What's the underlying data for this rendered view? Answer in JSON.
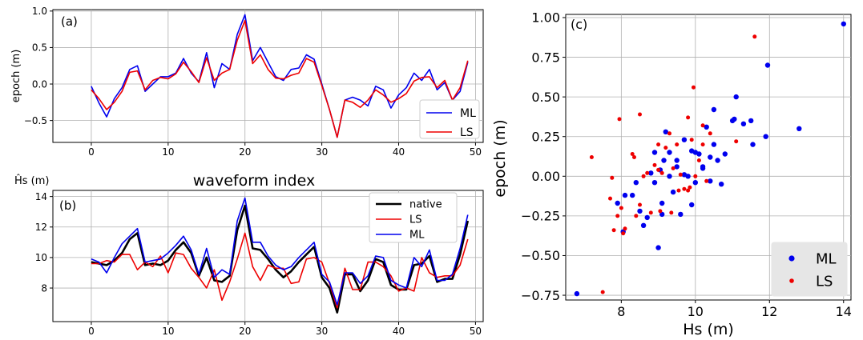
{
  "chart_data": [
    {
      "type": "line",
      "panel_label": "(a)",
      "xlabel": "waveform index",
      "ylabel": "epoch (m)",
      "xlim": [
        -5,
        51
      ],
      "ylim": [
        -0.8,
        1.02
      ],
      "xticks": [
        0,
        10,
        20,
        30,
        40,
        50
      ],
      "yticks": [
        -0.5,
        0.0,
        0.5,
        1.0
      ],
      "ytick_labels": [
        "−0.5",
        "0.0",
        "0.5",
        "1.0"
      ],
      "grid": true,
      "legend": "lower-right",
      "x": [
        0,
        1,
        2,
        3,
        4,
        5,
        6,
        7,
        8,
        9,
        10,
        11,
        12,
        13,
        14,
        15,
        16,
        17,
        18,
        19,
        20,
        21,
        22,
        23,
        24,
        25,
        26,
        27,
        28,
        29,
        30,
        31,
        32,
        33,
        34,
        35,
        36,
        37,
        38,
        39,
        40,
        41,
        42,
        43,
        44,
        45,
        46,
        47,
        48,
        49
      ],
      "series": [
        {
          "name": "ML",
          "color": "#0000ee",
          "values": [
            -0.03,
            -0.26,
            -0.45,
            -0.2,
            -0.05,
            0.2,
            0.25,
            -0.1,
            0.0,
            0.1,
            0.1,
            0.15,
            0.35,
            0.15,
            0.03,
            0.43,
            -0.05,
            0.28,
            0.2,
            0.68,
            0.95,
            0.32,
            0.5,
            0.3,
            0.1,
            0.05,
            0.2,
            0.22,
            0.4,
            0.34,
            0.0,
            -0.35,
            -0.73,
            -0.22,
            -0.18,
            -0.22,
            -0.3,
            -0.03,
            -0.08,
            -0.33,
            -0.15,
            -0.05,
            0.15,
            0.05,
            0.2,
            -0.08,
            0.02,
            -0.22,
            -0.1,
            0.3
          ]
        },
        {
          "name": "LS",
          "color": "#ee0000",
          "values": [
            -0.08,
            -0.2,
            -0.35,
            -0.25,
            -0.1,
            0.16,
            0.18,
            -0.08,
            0.05,
            0.09,
            0.07,
            0.14,
            0.3,
            0.17,
            0.02,
            0.36,
            0.05,
            0.15,
            0.2,
            0.6,
            0.87,
            0.28,
            0.4,
            0.2,
            0.08,
            0.07,
            0.12,
            0.15,
            0.35,
            0.3,
            -0.02,
            -0.35,
            -0.73,
            -0.22,
            -0.25,
            -0.32,
            -0.22,
            -0.08,
            -0.15,
            -0.25,
            -0.2,
            -0.13,
            0.04,
            0.09,
            0.1,
            -0.05,
            0.05,
            -0.22,
            -0.05,
            0.32
          ]
        }
      ]
    },
    {
      "type": "line",
      "panel_label": "(b)",
      "xlabel": "",
      "ylabel": "Ĥs (m)",
      "xlim": [
        -5,
        51
      ],
      "ylim": [
        5.8,
        14.4
      ],
      "xticks": [
        0,
        10,
        20,
        30,
        40,
        50
      ],
      "yticks": [
        8,
        10,
        12,
        14
      ],
      "grid": true,
      "legend": "top-right",
      "x": [
        0,
        1,
        2,
        3,
        4,
        5,
        6,
        7,
        8,
        9,
        10,
        11,
        12,
        13,
        14,
        15,
        16,
        17,
        18,
        19,
        20,
        21,
        22,
        23,
        24,
        25,
        26,
        27,
        28,
        29,
        30,
        31,
        32,
        33,
        34,
        35,
        36,
        37,
        38,
        39,
        40,
        41,
        42,
        43,
        44,
        45,
        46,
        47,
        48,
        49
      ],
      "series": [
        {
          "name": "native",
          "color": "#000000",
          "values": [
            9.7,
            9.6,
            9.5,
            9.8,
            10.3,
            11.2,
            11.6,
            9.5,
            9.6,
            9.5,
            9.8,
            10.5,
            11.0,
            10.3,
            8.8,
            10.0,
            8.5,
            8.4,
            8.8,
            11.8,
            13.4,
            10.6,
            10.5,
            9.9,
            9.2,
            8.7,
            9.1,
            9.7,
            10.2,
            10.7,
            8.7,
            8.0,
            6.4,
            8.9,
            8.9,
            7.8,
            8.5,
            9.9,
            9.7,
            8.2,
            7.9,
            7.9,
            9.5,
            9.6,
            10.1,
            8.4,
            8.6,
            8.6,
            10.2,
            12.4
          ]
        },
        {
          "name": "LS",
          "color": "#ee0000",
          "values": [
            9.6,
            9.6,
            9.8,
            9.7,
            10.2,
            10.2,
            9.2,
            9.7,
            9.4,
            10.1,
            9.0,
            10.3,
            10.2,
            9.3,
            8.7,
            8.0,
            9.2,
            7.2,
            8.4,
            9.9,
            11.6,
            9.4,
            8.5,
            9.5,
            9.3,
            9.3,
            8.3,
            8.4,
            9.9,
            10.0,
            9.7,
            8.3,
            6.7,
            9.3,
            7.9,
            7.9,
            9.7,
            9.7,
            9.4,
            8.8,
            7.8,
            8.0,
            7.8,
            10.0,
            9.0,
            8.7,
            8.8,
            8.8,
            9.5,
            11.2
          ]
        },
        {
          "name": "ML",
          "color": "#0000ee",
          "values": [
            9.9,
            9.7,
            9.0,
            10.0,
            10.9,
            11.4,
            11.9,
            9.7,
            9.8,
            9.9,
            10.3,
            10.8,
            11.4,
            10.5,
            8.9,
            10.6,
            8.7,
            9.2,
            8.9,
            12.4,
            13.9,
            11.0,
            11.0,
            10.1,
            9.5,
            9.2,
            9.4,
            10.0,
            10.5,
            11.0,
            8.9,
            8.4,
            6.9,
            9.0,
            9.0,
            8.3,
            8.8,
            10.1,
            10.0,
            8.5,
            8.2,
            8.0,
            10.0,
            9.4,
            10.5,
            8.5,
            8.5,
            8.9,
            10.6,
            12.8
          ]
        }
      ]
    },
    {
      "type": "scatter",
      "panel_label": "(c)",
      "xlabel": "Hs (m)",
      "ylabel": "epoch (m)",
      "xlim": [
        6.5,
        14.2
      ],
      "ylim": [
        -0.78,
        1.02
      ],
      "xticks": [
        8,
        10,
        12,
        14
      ],
      "yticks": [
        -0.75,
        -0.5,
        -0.25,
        0.0,
        0.25,
        0.5,
        0.75,
        1.0
      ],
      "ytick_labels": [
        "−0.75",
        "−0.50",
        "−0.25",
        "0.00",
        "0.25",
        "0.50",
        "0.75",
        "1.00"
      ],
      "grid": true,
      "legend": "lower-right",
      "series": [
        {
          "name": "ML",
          "color": "#0000ee",
          "points": [
            [
              6.8,
              -0.74
            ],
            [
              7.9,
              -0.17
            ],
            [
              8.05,
              -0.35
            ],
            [
              8.1,
              -0.12
            ],
            [
              8.3,
              -0.12
            ],
            [
              8.4,
              -0.04
            ],
            [
              8.5,
              -0.22
            ],
            [
              8.6,
              -0.31
            ],
            [
              8.7,
              -0.26
            ],
            [
              8.8,
              0.02
            ],
            [
              8.9,
              0.15
            ],
            [
              8.9,
              -0.04
            ],
            [
              9.0,
              -0.45
            ],
            [
              9.05,
              0.04
            ],
            [
              9.1,
              -0.17
            ],
            [
              9.1,
              -0.24
            ],
            [
              9.15,
              0.1
            ],
            [
              9.2,
              0.28
            ],
            [
              9.3,
              0.15
            ],
            [
              9.3,
              0.0
            ],
            [
              9.4,
              -0.1
            ],
            [
              9.5,
              0.1
            ],
            [
              9.5,
              0.06
            ],
            [
              9.6,
              -0.24
            ],
            [
              9.7,
              0.23
            ],
            [
              9.7,
              0.01
            ],
            [
              9.8,
              0.0
            ],
            [
              9.9,
              0.16
            ],
            [
              9.9,
              -0.18
            ],
            [
              10.0,
              -0.04
            ],
            [
              10.0,
              0.15
            ],
            [
              10.1,
              0.14
            ],
            [
              10.2,
              0.06
            ],
            [
              10.2,
              0.05
            ],
            [
              10.3,
              0.31
            ],
            [
              10.4,
              -0.03
            ],
            [
              10.4,
              0.12
            ],
            [
              10.5,
              0.42
            ],
            [
              10.5,
              0.2
            ],
            [
              10.6,
              0.1
            ],
            [
              10.7,
              -0.05
            ],
            [
              10.8,
              0.14
            ],
            [
              11.0,
              0.35
            ],
            [
              11.05,
              0.36
            ],
            [
              11.1,
              0.5
            ],
            [
              11.3,
              0.33
            ],
            [
              11.5,
              0.35
            ],
            [
              11.55,
              0.2
            ],
            [
              11.9,
              0.25
            ],
            [
              11.95,
              0.7
            ],
            [
              12.8,
              0.3
            ],
            [
              14.0,
              0.96
            ]
          ]
        },
        {
          "name": "LS",
          "color": "#ee0000",
          "points": [
            [
              7.2,
              0.12
            ],
            [
              7.5,
              -0.73
            ],
            [
              7.7,
              -0.14
            ],
            [
              7.75,
              -0.01
            ],
            [
              7.8,
              -0.34
            ],
            [
              7.9,
              -0.25
            ],
            [
              7.95,
              0.36
            ],
            [
              8.0,
              -0.2
            ],
            [
              8.05,
              -0.36
            ],
            [
              8.1,
              -0.33
            ],
            [
              8.3,
              0.14
            ],
            [
              8.35,
              0.12
            ],
            [
              8.4,
              -0.25
            ],
            [
              8.5,
              0.39
            ],
            [
              8.5,
              -0.18
            ],
            [
              8.6,
              0.0
            ],
            [
              8.7,
              0.02
            ],
            [
              8.8,
              -0.23
            ],
            [
              8.9,
              0.07
            ],
            [
              9.0,
              0.04
            ],
            [
              9.0,
              0.2
            ],
            [
              9.05,
              -0.22
            ],
            [
              9.1,
              0.02
            ],
            [
              9.2,
              0.18
            ],
            [
              9.3,
              0.27
            ],
            [
              9.35,
              -0.23
            ],
            [
              9.4,
              0.05
            ],
            [
              9.5,
              0.2
            ],
            [
              9.55,
              -0.09
            ],
            [
              9.6,
              0.01
            ],
            [
              9.7,
              -0.08
            ],
            [
              9.8,
              0.37
            ],
            [
              9.8,
              -0.09
            ],
            [
              9.85,
              -0.07
            ],
            [
              9.9,
              0.23
            ],
            [
              9.95,
              0.56
            ],
            [
              10.0,
              0.0
            ],
            [
              10.1,
              0.1
            ],
            [
              10.2,
              0.32
            ],
            [
              10.2,
              0.2
            ],
            [
              10.3,
              -0.03
            ],
            [
              10.4,
              0.27
            ],
            [
              11.1,
              0.22
            ],
            [
              11.6,
              0.88
            ]
          ]
        }
      ]
    }
  ]
}
